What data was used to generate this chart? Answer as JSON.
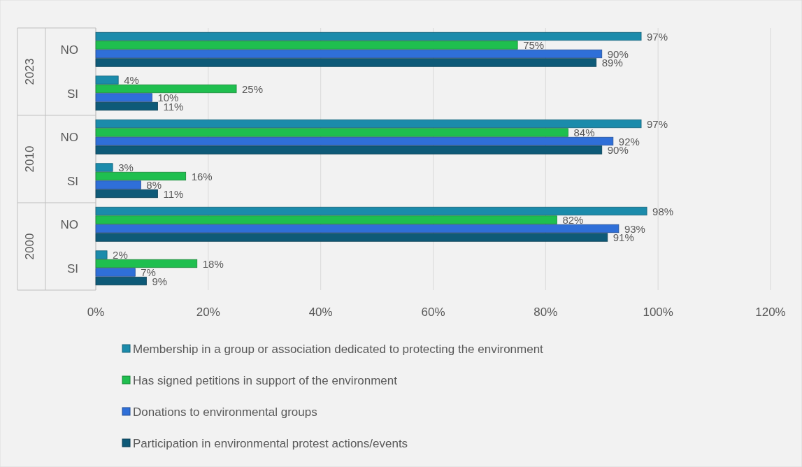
{
  "chart_data": {
    "type": "bar",
    "orientation": "horizontal",
    "categories": [
      "NO",
      "SI",
      "NO",
      "SI",
      "NO",
      "SI"
    ],
    "annotations": [
      "2023",
      "2010",
      "2000"
    ],
    "series": [
      {
        "name": "Membership in a group or association dedicated to protecting the environment",
        "color": "#1b8bab",
        "values": [
          97,
          4,
          97,
          3,
          98,
          2
        ],
        "value_labels": [
          "97%",
          "4%",
          "97%",
          "3%",
          "98%",
          "2%"
        ]
      },
      {
        "name": "Has signed petitions in support of the environment",
        "color": "#1fbf4f",
        "values": [
          75,
          25,
          84,
          16,
          82,
          18
        ],
        "value_labels": [
          "75%",
          "25%",
          "84%",
          "16%",
          "82%",
          "18%"
        ]
      },
      {
        "name": "Donations to environmental groups",
        "color": "#2f6fd8",
        "values": [
          90,
          10,
          92,
          8,
          93,
          7
        ],
        "value_labels": [
          "90%",
          "10%",
          "92%",
          "8%",
          "93%",
          "7%"
        ]
      },
      {
        "name": "Participation in environmental protest actions/events",
        "color": "#0e5a78",
        "values": [
          89,
          11,
          90,
          11,
          91,
          9
        ],
        "value_labels": [
          "89%",
          "11%",
          "90%",
          "11%",
          "91%",
          "9%"
        ]
      }
    ],
    "xlim": [
      0,
      120
    ],
    "xticks": [
      {
        "value": 0,
        "label": "0%"
      },
      {
        "value": 20,
        "label": "20%"
      },
      {
        "value": 40,
        "label": "40%"
      },
      {
        "value": 60,
        "label": "60%"
      },
      {
        "value": 80,
        "label": "80%"
      },
      {
        "value": 100,
        "label": "100%"
      },
      {
        "value": 120,
        "label": "120%"
      }
    ],
    "grid": "x",
    "legend": "bottom"
  }
}
